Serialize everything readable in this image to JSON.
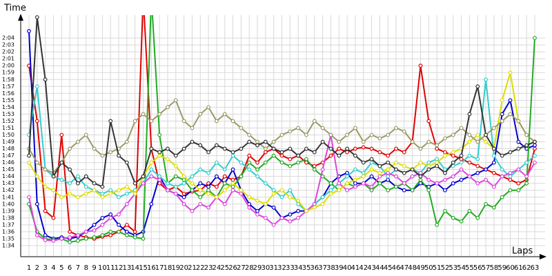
{
  "chart_data": {
    "type": "line",
    "y_label": "Time",
    "x_label": "Laps",
    "grid": true,
    "categories": [
      1,
      2,
      3,
      4,
      5,
      6,
      7,
      8,
      9,
      10,
      11,
      12,
      13,
      14,
      15,
      16,
      17,
      18,
      19,
      20,
      21,
      22,
      23,
      24,
      25,
      26,
      27,
      28,
      29,
      30,
      31,
      32,
      33,
      34,
      35,
      36,
      37,
      38,
      39,
      40,
      41,
      42,
      43,
      44,
      45,
      46,
      47,
      48,
      49,
      50,
      51,
      52,
      53,
      54,
      55,
      56,
      57,
      58,
      59,
      60,
      61,
      62,
      63
    ],
    "ylim": [
      92.4,
      127.3
    ],
    "yticks": [
      {
        "value": 94,
        "label": "1:34"
      },
      {
        "value": 95,
        "label": "1:35"
      },
      {
        "value": 96,
        "label": "1:36"
      },
      {
        "value": 97,
        "label": "1:37"
      },
      {
        "value": 98,
        "label": "1:38"
      },
      {
        "value": 99,
        "label": "1:39"
      },
      {
        "value": 100,
        "label": "1:40"
      },
      {
        "value": 101,
        "label": "1:41"
      },
      {
        "value": 102,
        "label": "1:42"
      },
      {
        "value": 103,
        "label": "1:43"
      },
      {
        "value": 104,
        "label": "1:44"
      },
      {
        "value": 105,
        "label": "1:45"
      },
      {
        "value": 106,
        "label": "1:46"
      },
      {
        "value": 107,
        "label": "1:47"
      },
      {
        "value": 108,
        "label": "1:48"
      },
      {
        "value": 109,
        "label": "1:49"
      },
      {
        "value": 110,
        "label": "1:50"
      },
      {
        "value": 111,
        "label": "1:51"
      },
      {
        "value": 112,
        "label": "1:52"
      },
      {
        "value": 113,
        "label": "1:53"
      },
      {
        "value": 114,
        "label": "1:54"
      },
      {
        "value": 115,
        "label": "1:55"
      },
      {
        "value": 116,
        "label": "1:56"
      },
      {
        "value": 117,
        "label": "1:57"
      },
      {
        "value": 118,
        "label": "1:58"
      },
      {
        "value": 119,
        "label": "1:59"
      },
      {
        "value": 120,
        "label": "2:00"
      },
      {
        "value": 121,
        "label": "2:01"
      },
      {
        "value": 122,
        "label": "2:02"
      },
      {
        "value": 123,
        "label": "2:03"
      },
      {
        "value": 124,
        "label": "2:04"
      }
    ],
    "series": [
      {
        "color": "#e00000",
        "values": [
          120,
          112,
          99,
          98,
          110,
          96,
          95.5,
          95.2,
          95,
          95.3,
          95.5,
          96,
          97,
          96,
          130,
          108,
          103,
          102,
          102.5,
          101.5,
          101.8,
          102,
          103,
          102.5,
          104,
          103.5,
          104,
          107,
          106,
          107.5,
          108,
          107,
          106.5,
          107,
          106,
          105.5,
          106,
          107,
          108,
          107.5,
          108,
          108.2,
          108,
          107.5,
          107,
          108,
          107.5,
          109,
          120,
          112,
          108,
          107.5,
          107,
          106.5,
          106,
          105.5,
          105,
          104.5,
          104,
          103.5,
          103,
          103.5,
          108
        ]
      },
      {
        "color": "#0000cc",
        "values": [
          125,
          100,
          95.5,
          95,
          95.2,
          95,
          95.3,
          96,
          97,
          98,
          98.5,
          97,
          96,
          95.5,
          96,
          100,
          104,
          102,
          101.5,
          101,
          102,
          103,
          102.5,
          104,
          103,
          105,
          102,
          100,
          99,
          100,
          99.5,
          98,
          98.5,
          99,
          99,
          100,
          101,
          103,
          104,
          104.5,
          103,
          103,
          104,
          103,
          103.5,
          102.5,
          102,
          102,
          103,
          102.5,
          103,
          102,
          103,
          103.5,
          104,
          104.5,
          105,
          106,
          113,
          115,
          109,
          108,
          108.5
        ]
      },
      {
        "color": "#22aa22",
        "values": [
          100,
          96,
          95,
          94.8,
          95,
          94.5,
          94.7,
          95,
          95.2,
          95.5,
          96,
          96,
          95.5,
          95.2,
          95,
          130,
          110,
          103,
          104,
          103.5,
          102,
          101,
          102,
          101,
          103,
          102.5,
          104,
          106,
          105,
          106,
          107,
          106,
          105.5,
          106,
          106.5,
          105,
          104,
          103,
          102,
          103,
          102.5,
          103,
          102,
          103,
          102,
          102.5,
          103,
          102,
          103.5,
          102,
          97,
          99,
          98,
          97.5,
          99,
          98,
          100,
          99.5,
          101,
          102,
          102,
          103,
          124
        ]
      },
      {
        "color": "#33cccc",
        "values": [
          110,
          117,
          105,
          104,
          103.5,
          103,
          104,
          102.5,
          102,
          101.5,
          102,
          101,
          101.5,
          102,
          103,
          105,
          104,
          103,
          102.5,
          103,
          104,
          105,
          104.5,
          106,
          105,
          107,
          106,
          105,
          104,
          103,
          102,
          101,
          102,
          100,
          99,
          100,
          101,
          102,
          103,
          104,
          105,
          104.5,
          106,
          105.5,
          104,
          105,
          104.5,
          105,
          104.5,
          106,
          106.5,
          105,
          105.5,
          106,
          107,
          106.5,
          118,
          107,
          105,
          104,
          105,
          106,
          107
        ]
      },
      {
        "color": "#dd44dd",
        "values": [
          101,
          95.5,
          94.8,
          94.7,
          95,
          95.2,
          95.5,
          96,
          96.2,
          97,
          98,
          98.5,
          100,
          101.5,
          103,
          104,
          103.5,
          102,
          101.5,
          100,
          99,
          100,
          99.5,
          101,
          100,
          102,
          101.5,
          99.5,
          98.5,
          98,
          97,
          98,
          97.5,
          98,
          99,
          100,
          105,
          110,
          103,
          102,
          102.5,
          103,
          102.5,
          104,
          104.5,
          104,
          103,
          104,
          104.5,
          103.5,
          103,
          103.5,
          104,
          105,
          104,
          103,
          103.5,
          102.5,
          104,
          104.5,
          105,
          104,
          106
        ]
      },
      {
        "color": "#dddd00",
        "values": [
          106,
          104,
          102.5,
          102,
          101,
          101.5,
          101,
          101.5,
          102,
          101,
          101.5,
          102,
          102.5,
          101.5,
          104,
          106,
          107,
          106.5,
          105.5,
          104,
          103,
          102,
          101.5,
          101,
          102,
          103,
          102,
          101,
          100.5,
          100,
          101.5,
          102,
          101,
          100.5,
          99,
          99.5,
          100,
          101.5,
          102,
          103,
          103.5,
          104,
          105,
          104.5,
          105,
          106,
          105.5,
          105,
          106,
          105.5,
          106,
          107,
          107.5,
          108,
          109,
          110,
          109,
          108,
          115,
          119,
          112,
          110,
          109
        ]
      },
      {
        "color": "#999966",
        "values": [
          108,
          106,
          105,
          104.5,
          106,
          108,
          109,
          110,
          108,
          107,
          107.5,
          108,
          109,
          112,
          113,
          112,
          113,
          114,
          115,
          112,
          111,
          113,
          114,
          112,
          113,
          112,
          111,
          110,
          109,
          108,
          109,
          110,
          110.5,
          111,
          110,
          112,
          111,
          110,
          109,
          110,
          111,
          109,
          110,
          109.5,
          110,
          111,
          110.5,
          109,
          108,
          109,
          108.5,
          109.5,
          110,
          111,
          110,
          109,
          110,
          111,
          112,
          113,
          112,
          110,
          109
        ]
      },
      {
        "color": "#333333",
        "values": [
          107,
          127,
          118,
          104,
          106,
          105,
          103,
          104,
          103,
          102.5,
          112,
          107,
          106,
          103,
          104,
          108,
          107.5,
          108,
          107,
          108,
          109,
          108.5,
          107.5,
          108.5,
          108,
          107.5,
          108,
          109,
          108.5,
          109,
          108,
          107.5,
          108,
          107,
          108,
          107.5,
          109,
          108,
          107,
          108,
          107,
          106,
          106.5,
          105.5,
          106,
          105,
          104.5,
          105,
          104,
          105,
          105.5,
          104.5,
          106,
          107,
          113,
          117,
          110,
          108,
          107,
          107.5,
          108,
          108.5,
          109
        ]
      }
    ]
  }
}
